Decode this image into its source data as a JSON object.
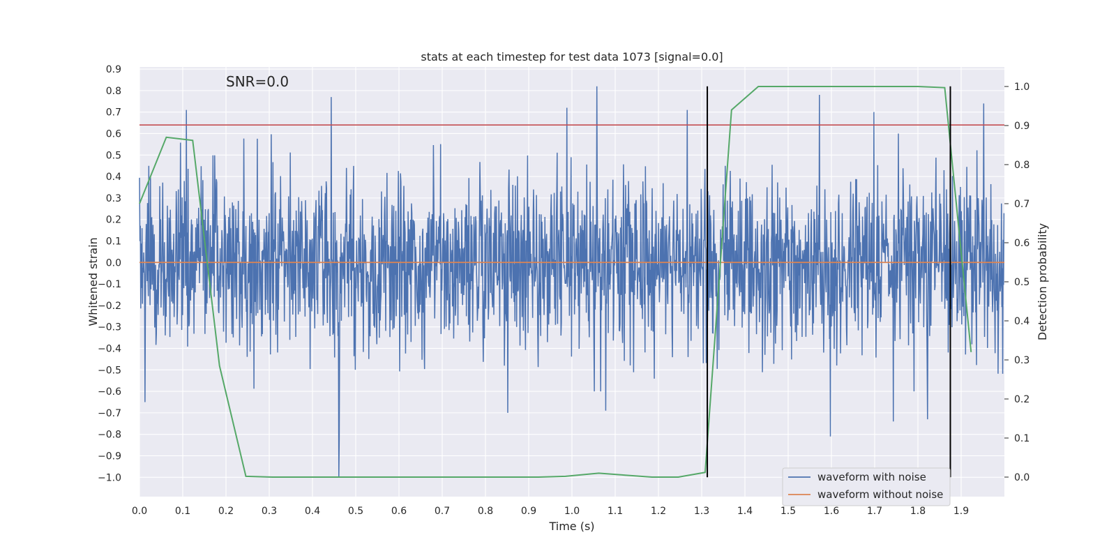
{
  "chart_data": {
    "type": "line",
    "title": "stats at each timestep for test data 1073 [signal=0.0]",
    "annotation": "SNR=0.0",
    "xlabel": "Time (s)",
    "ylabel": "Whitened strain",
    "y2label": "Detection probability",
    "xlim": [
      0.0,
      2.0
    ],
    "ylim": [
      -1.09,
      0.91
    ],
    "y2lim": [
      -0.05,
      1.05
    ],
    "xticks": [
      0.0,
      0.1,
      0.2,
      0.3,
      0.4,
      0.5,
      0.6,
      0.7,
      0.8,
      0.9,
      1.0,
      1.1,
      1.2,
      1.3,
      1.4,
      1.5,
      1.6,
      1.7,
      1.8,
      1.9
    ],
    "xtick_labels": [
      "0.0",
      "0.1",
      "0.2",
      "0.3",
      "0.4",
      "0.5",
      "0.6",
      "0.7",
      "0.8",
      "0.9",
      "1.0",
      "1.1",
      "1.2",
      "1.3",
      "1.4",
      "1.5",
      "1.6",
      "1.7",
      "1.8",
      "1.9"
    ],
    "yticks": [
      0.9,
      0.8,
      0.7,
      0.6,
      0.5,
      0.4,
      0.3,
      0.2,
      0.1,
      0.0,
      -0.1,
      -0.2,
      -0.3,
      -0.4,
      -0.5,
      -0.6,
      -0.7,
      -0.8,
      -0.9,
      -1.0
    ],
    "ytick_labels": [
      "0.9",
      "0.8",
      "0.7",
      "0.6",
      "0.5",
      "0.4",
      "0.3",
      "0.2",
      "0.1",
      "0.0",
      "−0.1",
      "−0.2",
      "−0.3",
      "−0.4",
      "−0.5",
      "−0.6",
      "−0.7",
      "−0.8",
      "−0.9",
      "−1.0"
    ],
    "y2ticks": [
      1.0,
      0.9,
      0.8,
      0.7,
      0.6,
      0.5,
      0.4,
      0.3,
      0.2,
      0.1,
      0.0
    ],
    "y2tick_labels": [
      "1.0",
      "0.9",
      "0.8",
      "0.7",
      "0.6",
      "0.5",
      "0.4",
      "0.3",
      "0.2",
      "0.1",
      "0.0"
    ],
    "series": [
      {
        "name": "waveform with noise",
        "color": "#4c72b0",
        "axis": "left",
        "n_samples": 2048,
        "x_range": [
          0.0,
          1.999
        ],
        "typical_std": 0.2,
        "peaks": [
          {
            "x": 0.108,
            "y": 0.71
          },
          {
            "x": 0.443,
            "y": 0.77
          },
          {
            "x": 0.461,
            "y": -1.0
          },
          {
            "x": 0.462,
            "y": -0.82
          },
          {
            "x": 0.988,
            "y": 0.72
          },
          {
            "x": 1.058,
            "y": 0.82
          },
          {
            "x": 1.267,
            "y": 0.71
          },
          {
            "x": 1.572,
            "y": 0.78
          },
          {
            "x": 1.698,
            "y": 0.7
          },
          {
            "x": 1.743,
            "y": -0.74
          },
          {
            "x": 1.598,
            "y": -0.81
          },
          {
            "x": 0.013,
            "y": -0.65
          },
          {
            "x": 0.852,
            "y": -0.7
          },
          {
            "x": 1.078,
            "y": -0.69
          },
          {
            "x": 1.822,
            "y": -0.73
          },
          {
            "x": 1.952,
            "y": 0.74
          }
        ]
      },
      {
        "name": "waveform without noise",
        "color": "#dd8452",
        "axis": "left",
        "x": [
          0.0,
          2.0
        ],
        "y": [
          0.0,
          0.0
        ]
      },
      {
        "name": "detection probability",
        "color": "#55a868",
        "axis": "right",
        "x": [
          0.0,
          0.062,
          0.123,
          0.185,
          0.246,
          0.308,
          0.369,
          0.431,
          0.492,
          0.554,
          0.615,
          0.677,
          0.738,
          0.8,
          0.862,
          0.923,
          0.985,
          1.062,
          1.123,
          1.185,
          1.246,
          1.308,
          1.369,
          1.431,
          1.492,
          1.554,
          1.615,
          1.677,
          1.738,
          1.8,
          1.862,
          1.923
        ],
        "y": [
          0.7,
          0.87,
          0.862,
          0.285,
          0.002,
          0.0,
          0.0,
          0.0,
          0.0,
          0.0,
          0.0,
          0.0,
          0.0,
          0.0,
          0.0,
          0.0,
          0.002,
          0.01,
          0.005,
          0.0,
          0.0,
          0.012,
          0.94,
          1.0,
          1.0,
          1.0,
          1.0,
          1.0,
          1.0,
          1.0,
          0.997,
          0.32
        ]
      }
    ],
    "hlines": [
      {
        "y": 0.64,
        "color": "#c44e52",
        "axis": "left"
      }
    ],
    "vlines": [
      {
        "x": 1.313,
        "ymin": -1.0,
        "ymax": 0.82,
        "color": "#000000"
      },
      {
        "x": 1.875,
        "ymin": -1.0,
        "ymax": 0.82,
        "color": "#000000"
      }
    ],
    "legend": {
      "location": "lower-right",
      "entries": [
        {
          "label": "waveform with noise",
          "color": "#4c72b0"
        },
        {
          "label": "waveform without noise",
          "color": "#dd8452"
        }
      ]
    },
    "colors": {
      "plot_background": "#eaeaf2",
      "grid": "#ffffff",
      "text": "#262626"
    }
  }
}
